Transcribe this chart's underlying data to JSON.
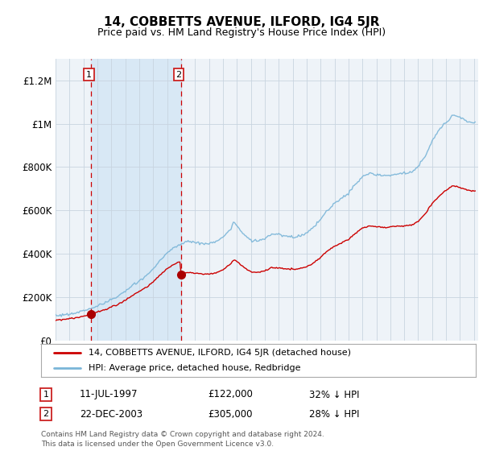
{
  "title": "14, COBBETTS AVENUE, ILFORD, IG4 5JR",
  "subtitle": "Price paid vs. HM Land Registry's House Price Index (HPI)",
  "background_color": "#f5f5f5",
  "plot_bg_color": "#eef3f8",
  "shade_color": "#d8e8f5",
  "transaction1_date": "11-JUL-1997",
  "transaction1_price": 122000,
  "transaction1_label": "32% ↓ HPI",
  "transaction2_date": "22-DEC-2003",
  "transaction2_price": 305000,
  "transaction2_label": "28% ↓ HPI",
  "legend_line1": "14, COBBETTS AVENUE, ILFORD, IG4 5JR (detached house)",
  "legend_line2": "HPI: Average price, detached house, Redbridge",
  "footer": "Contains HM Land Registry data © Crown copyright and database right 2024.\nThis data is licensed under the Open Government Licence v3.0.",
  "hpi_color": "#7ab5d8",
  "price_color": "#cc0000",
  "marker_color": "#aa0000",
  "dashed_color": "#cc0000",
  "ylim": [
    0,
    1300000
  ],
  "yticks": [
    0,
    200000,
    400000,
    600000,
    800000,
    1000000,
    1200000
  ],
  "xlim_start": 1995.0,
  "xlim_end": 2025.3,
  "t1_year": 1997.53,
  "t1_price": 122000,
  "t2_year": 2003.98,
  "t2_price": 305000
}
